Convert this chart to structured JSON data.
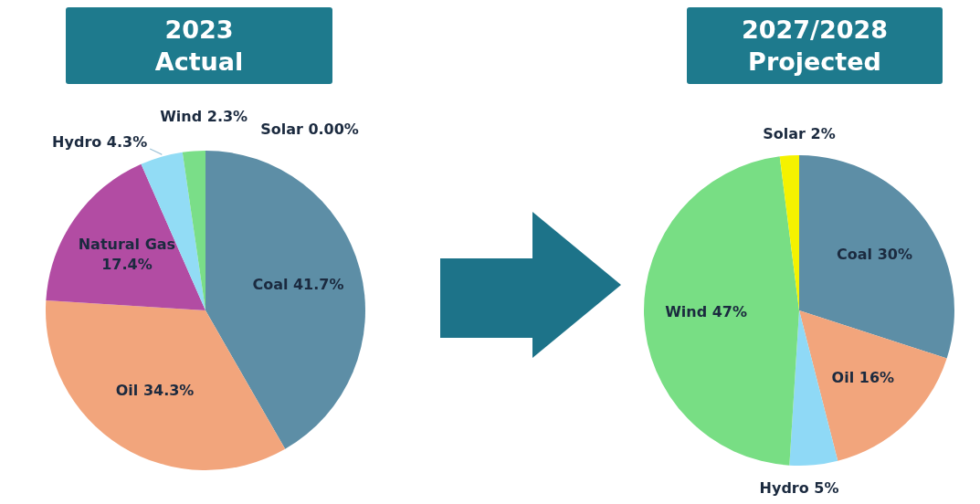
{
  "chart_data": [
    {
      "type": "pie",
      "title": "2023\nActual",
      "categories": [
        "Coal",
        "Oil",
        "Natural Gas",
        "Hydro",
        "Wind",
        "Solar"
      ],
      "values": [
        41.7,
        34.3,
        17.4,
        4.3,
        2.3,
        0.0
      ],
      "value_labels": [
        "41.7%",
        "34.3%",
        "17.4%",
        "4.3%",
        "2.3%",
        "0.00%"
      ],
      "colors": [
        "#5d8ea6",
        "#f2a57c",
        "#b24ca3",
        "#92dcf5",
        "#7ade88",
        "#f5f200"
      ]
    },
    {
      "type": "pie",
      "title": "2027/2028\nProjected",
      "categories": [
        "Coal",
        "Oil",
        "Hydro",
        "Wind",
        "Solar"
      ],
      "values": [
        30,
        16,
        5,
        47,
        2
      ],
      "value_labels": [
        "30%",
        "16%",
        "5%",
        "47%",
        "2%"
      ],
      "colors": [
        "#5d8ea6",
        "#f2a57c",
        "#8fd9f6",
        "#78de84",
        "#f5f200"
      ]
    }
  ]
}
